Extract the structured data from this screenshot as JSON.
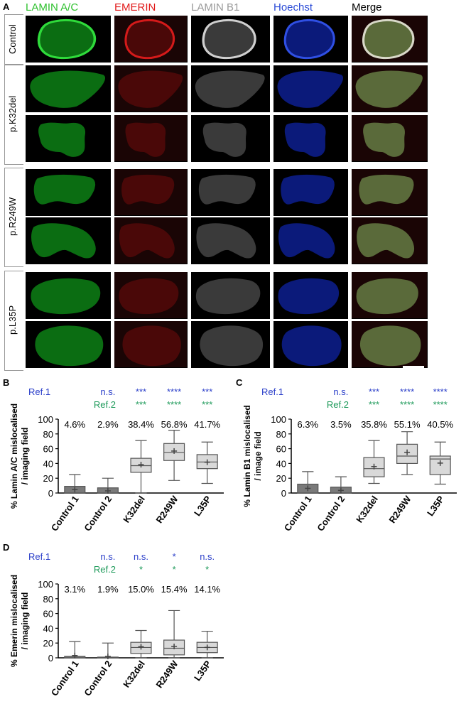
{
  "panel_a": {
    "label": "A",
    "channels": [
      {
        "label": "LAMIN A/C",
        "color": "#2ec12e"
      },
      {
        "label": "EMERIN",
        "color": "#e11a1a"
      },
      {
        "label": "LAMIN B1",
        "color": "#9a9a9a"
      },
      {
        "label": "Hoechst",
        "color": "#2a4bd7"
      },
      {
        "label": "Merge",
        "color": "#000000"
      }
    ],
    "row_groups": [
      {
        "label": "Control",
        "rows": 1
      },
      {
        "label": "p.K32del",
        "rows": 2
      },
      {
        "label": "p.R249W",
        "rows": 2
      },
      {
        "label": "p.L35P",
        "rows": 2
      }
    ],
    "marker_colors": {
      "lamin_ac": "#ffffff",
      "emerin": "#f2e400",
      "lamin_b1": "#e0cf00"
    }
  },
  "chart_data": [
    {
      "panel": "B",
      "type": "box",
      "ylabel": "% Lamin A/C mislocalised / imaging field",
      "ylim": [
        0,
        100
      ],
      "yticks": [
        0,
        20,
        40,
        60,
        80,
        100
      ],
      "categories": [
        "Control 1",
        "Control 2",
        "K32del",
        "R249W",
        "L35P"
      ],
      "percent_labels": [
        "4.6%",
        "2.9%",
        "38.4%",
        "56.8%",
        "41.7%"
      ],
      "ref1": {
        "label": "Ref.1",
        "marks": [
          "n.s.",
          "***",
          "****",
          "***"
        ],
        "color": "#2a3ec9"
      },
      "ref2": {
        "label": "Ref.2",
        "marks": [
          "***",
          "****",
          "***"
        ],
        "color": "#1e9a5a"
      },
      "boxes": [
        {
          "min": 0,
          "q1": 0,
          "median": 0,
          "q3": 9,
          "max": 25,
          "mean": 4.6,
          "fill": "#7a7a7a"
        },
        {
          "min": 0,
          "q1": 0,
          "median": 0,
          "q3": 7,
          "max": 20,
          "mean": 2.9,
          "fill": "#7a7a7a"
        },
        {
          "min": 0,
          "q1": 28,
          "median": 37,
          "q3": 47,
          "max": 71,
          "mean": 38.4,
          "fill": "#d9d9d9"
        },
        {
          "min": 17,
          "q1": 44,
          "median": 55,
          "q3": 67,
          "max": 85,
          "mean": 56.8,
          "fill": "#d9d9d9"
        },
        {
          "min": 13,
          "q1": 33,
          "median": 42,
          "q3": 52,
          "max": 69,
          "mean": 41.7,
          "fill": "#d9d9d9"
        }
      ]
    },
    {
      "panel": "C",
      "type": "box",
      "ylabel": "% Lamin B1 mislocalised / image field",
      "ylim": [
        0,
        100
      ],
      "yticks": [
        0,
        20,
        40,
        60,
        80,
        100
      ],
      "categories": [
        "Control 1",
        "Control 2",
        "K32del",
        "R249W",
        "L35P"
      ],
      "percent_labels": [
        "6.3%",
        "3.5%",
        "35.8%",
        "55.1%",
        "40.5%"
      ],
      "ref1": {
        "label": "Ref.1",
        "marks": [
          "n.s.",
          "***",
          "****",
          "****"
        ],
        "color": "#2a3ec9"
      },
      "ref2": {
        "label": "Ref.2",
        "marks": [
          "***",
          "****",
          "****"
        ],
        "color": "#1e9a5a"
      },
      "boxes": [
        {
          "min": 0,
          "q1": 0,
          "median": 0,
          "q3": 12,
          "max": 29,
          "mean": 6.3,
          "fill": "#7a7a7a"
        },
        {
          "min": 0,
          "q1": 0,
          "median": 0,
          "q3": 8,
          "max": 22,
          "mean": 3.5,
          "fill": "#7a7a7a"
        },
        {
          "min": 13,
          "q1": 22,
          "median": 33,
          "q3": 48,
          "max": 71,
          "mean": 35.8,
          "fill": "#d9d9d9"
        },
        {
          "min": 25,
          "q1": 40,
          "median": 50,
          "q3": 66,
          "max": 83,
          "mean": 55.1,
          "fill": "#d9d9d9"
        },
        {
          "min": 12,
          "q1": 25,
          "median": 46,
          "q3": 50,
          "max": 69,
          "mean": 40.5,
          "fill": "#d9d9d9"
        }
      ]
    },
    {
      "panel": "D",
      "type": "box",
      "ylabel": "% Emerin mislocalised / imaging field",
      "ylim": [
        0,
        100
      ],
      "yticks": [
        0,
        20,
        40,
        60,
        80,
        100
      ],
      "categories": [
        "Control 1",
        "Control 2",
        "K32del",
        "R249W",
        "L35P"
      ],
      "percent_labels": [
        "3.1%",
        "1.9%",
        "15.0%",
        "15.4%",
        "14.1%"
      ],
      "ref1": {
        "label": "Ref.1",
        "marks": [
          "n.s.",
          "n.s.",
          "*",
          "n.s."
        ],
        "color": "#2a3ec9"
      },
      "ref2": {
        "label": "Ref.2",
        "marks": [
          "*",
          "*",
          "*"
        ],
        "color": "#1e9a5a"
      },
      "boxes": [
        {
          "min": 0,
          "q1": 0,
          "median": 0,
          "q3": 2,
          "max": 22,
          "mean": 3.1,
          "fill": "#7a7a7a"
        },
        {
          "min": 0,
          "q1": 0,
          "median": 0,
          "q3": 1,
          "max": 20,
          "mean": 1.9,
          "fill": "#7a7a7a"
        },
        {
          "min": 0,
          "q1": 6,
          "median": 14,
          "q3": 21,
          "max": 37,
          "mean": 15.0,
          "fill": "#d9d9d9"
        },
        {
          "min": 0,
          "q1": 4,
          "median": 13,
          "q3": 24,
          "max": 64,
          "mean": 15.4,
          "fill": "#d9d9d9"
        },
        {
          "min": 0,
          "q1": 7,
          "median": 14,
          "q3": 21,
          "max": 36,
          "mean": 14.1,
          "fill": "#d9d9d9"
        }
      ]
    }
  ]
}
